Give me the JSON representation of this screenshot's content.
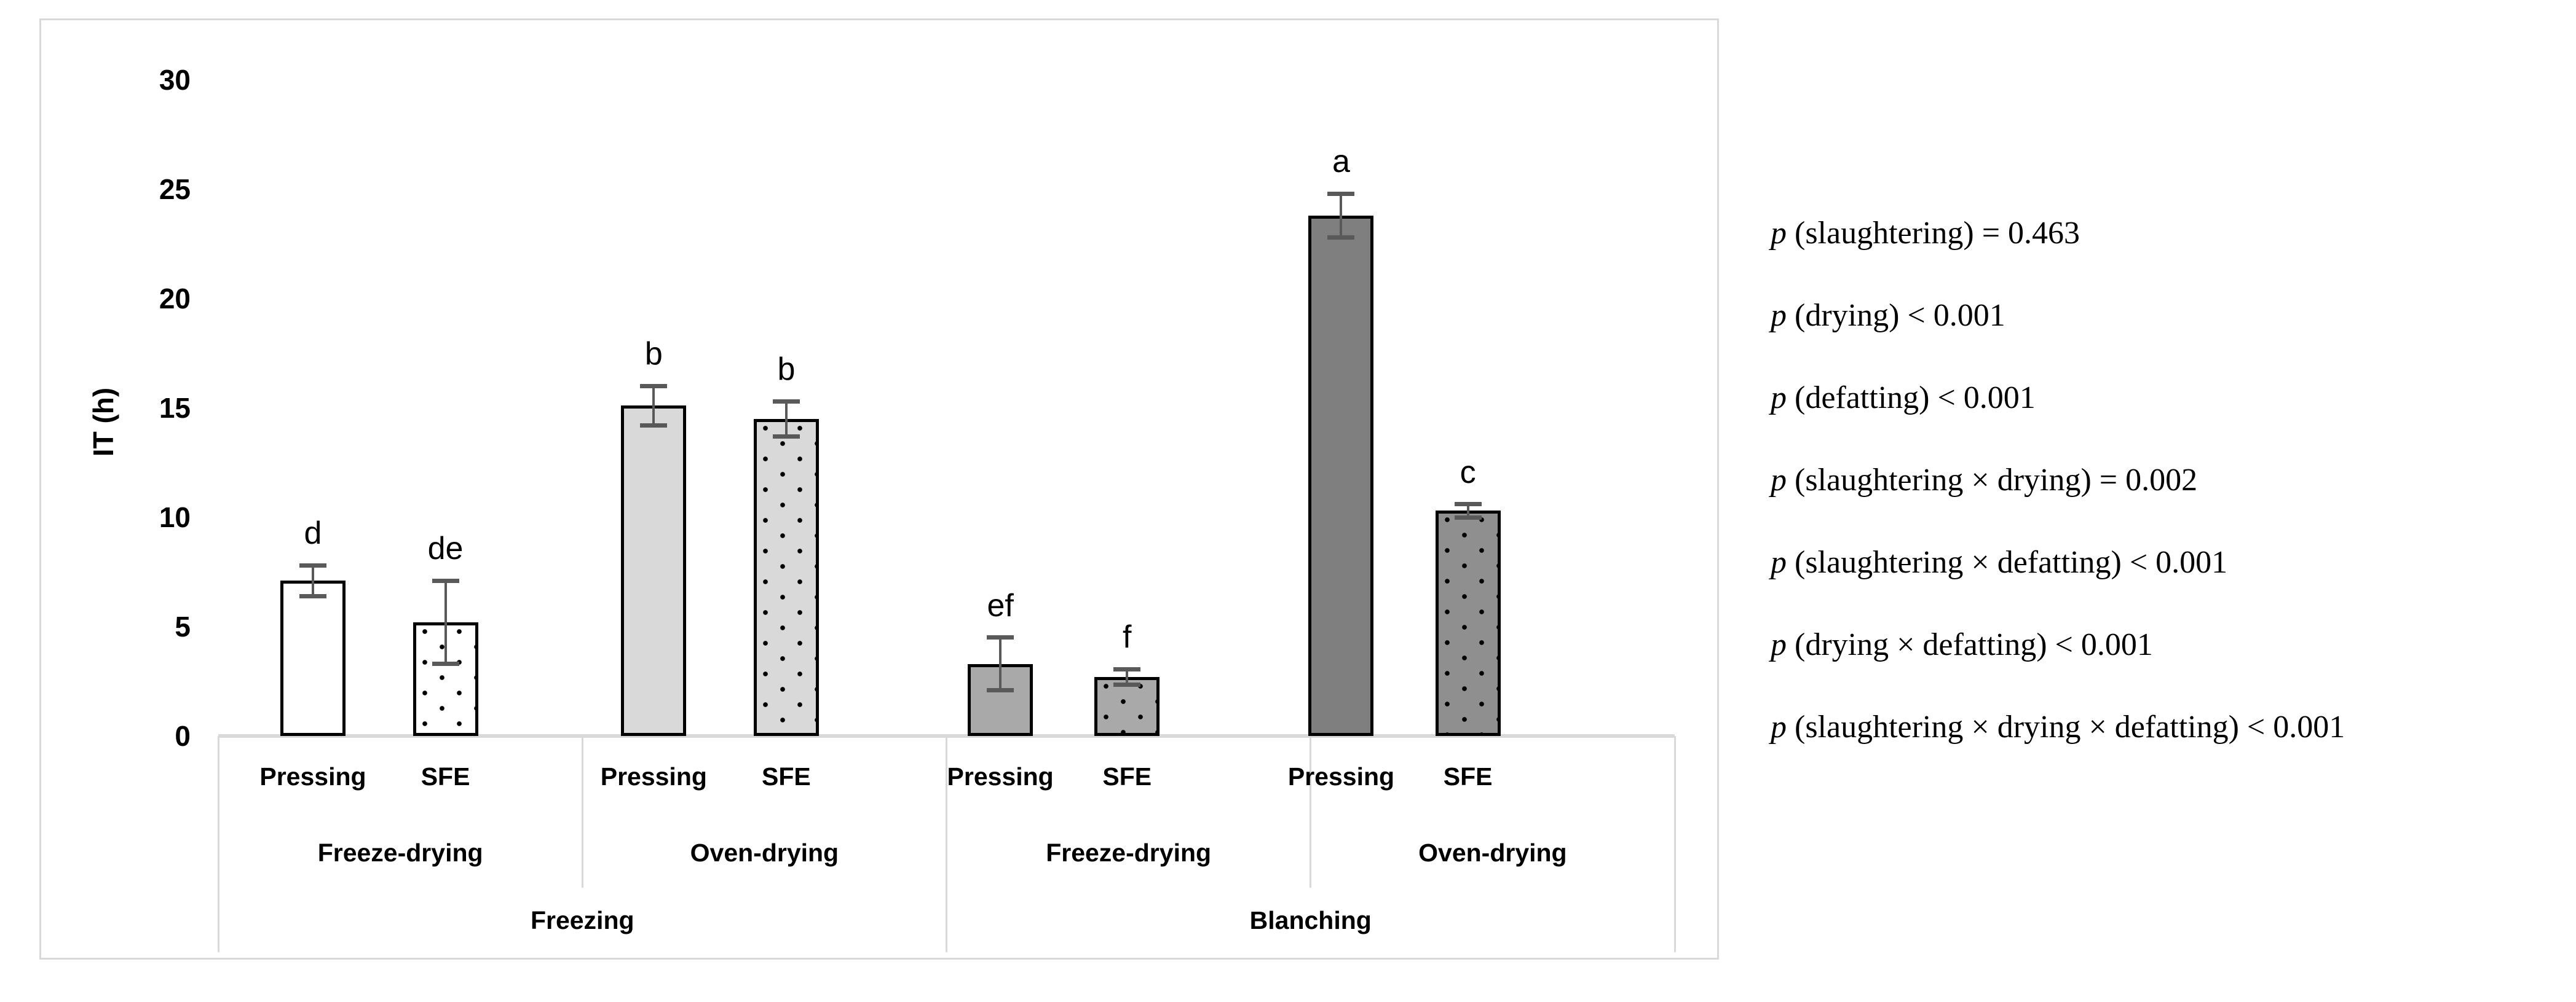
{
  "chart_data": {
    "type": "bar",
    "title": "",
    "ylabel": "IT (h)",
    "ylim": [
      0,
      30
    ],
    "yticks": [
      0,
      5,
      10,
      15,
      20,
      25,
      30
    ],
    "grid": false,
    "legend": "none",
    "bars": [
      {
        "slaughtering": "Freezing",
        "drying": "Freeze-drying",
        "defatting": "Pressing",
        "value": 7.1,
        "error": 0.7,
        "letter": "d",
        "fill": "#ffffff",
        "dotted": false
      },
      {
        "slaughtering": "Freezing",
        "drying": "Freeze-drying",
        "defatting": "SFE",
        "value": 5.2,
        "error": 1.9,
        "letter": "de",
        "fill": "#ffffff",
        "dotted": true
      },
      {
        "slaughtering": "Freezing",
        "drying": "Oven-drying",
        "defatting": "Pressing",
        "value": 15.1,
        "error": 0.9,
        "letter": "b",
        "fill": "#d9d9d9",
        "dotted": false
      },
      {
        "slaughtering": "Freezing",
        "drying": "Oven-drying",
        "defatting": "SFE",
        "value": 14.5,
        "error": 0.8,
        "letter": "b",
        "fill": "#d9d9d9",
        "dotted": true
      },
      {
        "slaughtering": "Blanching",
        "drying": "Freeze-drying",
        "defatting": "Pressing",
        "value": 3.3,
        "error": 1.2,
        "letter": "ef",
        "fill": "#a9a9a9",
        "dotted": false
      },
      {
        "slaughtering": "Blanching",
        "drying": "Freeze-drying",
        "defatting": "SFE",
        "value": 2.7,
        "error": 0.35,
        "letter": "f",
        "fill": "#a9a9a9",
        "dotted": true
      },
      {
        "slaughtering": "Blanching",
        "drying": "Oven-drying",
        "defatting": "Pressing",
        "value": 23.8,
        "error": 1.0,
        "letter": "a",
        "fill": "#7f7f7f",
        "dotted": false
      },
      {
        "slaughtering": "Blanching",
        "drying": "Oven-drying",
        "defatting": "SFE",
        "value": 10.3,
        "error": 0.3,
        "letter": "c",
        "fill": "#8f8f8f",
        "dotted": true
      }
    ],
    "x_axis_rows": {
      "defatting": [
        "Pressing",
        "SFE",
        "Pressing",
        "SFE",
        "Pressing",
        "SFE",
        "Pressing",
        "SFE"
      ],
      "drying": [
        "Freeze-drying",
        "Oven-drying",
        "Freeze-drying",
        "Oven-drying"
      ],
      "slaughtering": [
        "Freezing",
        "Blanching"
      ]
    },
    "annotations": [
      {
        "symbol": "p",
        "text": " (slaughtering) = 0.463"
      },
      {
        "symbol": "p",
        "text": " (drying) < 0.001"
      },
      {
        "symbol": "p",
        "text": " (defatting) < 0.001"
      },
      {
        "symbol": "p",
        "text": " (slaughtering × drying) = 0.002"
      },
      {
        "symbol": "p",
        "text": " (slaughtering × defatting) < 0.001"
      },
      {
        "symbol": "p",
        "text": " (drying × defatting) < 0.001"
      },
      {
        "symbol": "p",
        "text": " (slaughtering × drying × defatting) < 0.001"
      }
    ],
    "colors": {
      "bar_border": "#000000",
      "error_bar": "#595959",
      "frame": "#d9d9d9",
      "axis_table_line": "#d9d9d9",
      "text": "#000000"
    }
  }
}
